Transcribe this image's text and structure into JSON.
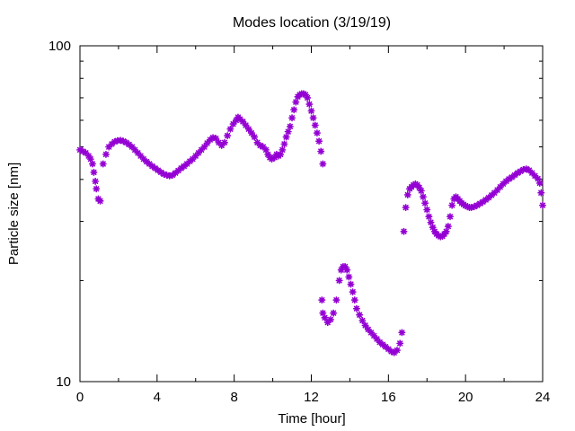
{
  "chart_data": {
    "type": "scatter",
    "title": "Modes location (3/19/19)",
    "xlabel": "Time [hour]",
    "ylabel": "Particle size [nm]",
    "xlim": [
      0,
      24
    ],
    "ylim": [
      10,
      100
    ],
    "yscale": "log",
    "grid": false,
    "marker_color": "#9400d3",
    "xticks": [
      {
        "value": 0,
        "label": "0"
      },
      {
        "value": 4,
        "label": "4"
      },
      {
        "value": 8,
        "label": "8"
      },
      {
        "value": 12,
        "label": "12"
      },
      {
        "value": 16,
        "label": "16"
      },
      {
        "value": 20,
        "label": "20"
      },
      {
        "value": 24,
        "label": "24"
      }
    ],
    "yticks": [
      {
        "value": 10,
        "label": "10"
      },
      {
        "value": 100,
        "label": "100"
      }
    ],
    "series": [
      {
        "points": [
          [
            0.0,
            49.0
          ],
          [
            0.15,
            48.5
          ],
          [
            0.3,
            48.0
          ],
          [
            0.45,
            47.0
          ],
          [
            0.55,
            46.0
          ],
          [
            0.65,
            44.5
          ],
          [
            0.72,
            42.0
          ],
          [
            0.8,
            39.5
          ],
          [
            0.85,
            37.5
          ],
          [
            0.95,
            35.0
          ],
          [
            1.05,
            34.5
          ],
          [
            1.2,
            44.5
          ],
          [
            1.35,
            47.5
          ],
          [
            1.5,
            50.0
          ],
          [
            1.65,
            51.0
          ],
          [
            1.8,
            51.8
          ],
          [
            1.95,
            52.2
          ],
          [
            2.1,
            52.3
          ],
          [
            2.25,
            52.0
          ],
          [
            2.4,
            51.5
          ],
          [
            2.55,
            50.8
          ],
          [
            2.7,
            50.0
          ],
          [
            2.85,
            49.0
          ],
          [
            3.0,
            48.0
          ],
          [
            3.15,
            47.0
          ],
          [
            3.3,
            46.0
          ],
          [
            3.45,
            45.2
          ],
          [
            3.6,
            44.5
          ],
          [
            3.75,
            43.8
          ],
          [
            3.9,
            43.2
          ],
          [
            4.05,
            42.6
          ],
          [
            4.2,
            42.0
          ],
          [
            4.35,
            41.5
          ],
          [
            4.5,
            41.2
          ],
          [
            4.65,
            41.0
          ],
          [
            4.8,
            41.2
          ],
          [
            4.95,
            41.8
          ],
          [
            5.1,
            42.5
          ],
          [
            5.25,
            43.2
          ],
          [
            5.4,
            43.8
          ],
          [
            5.55,
            44.5
          ],
          [
            5.7,
            45.3
          ],
          [
            5.85,
            46.0
          ],
          [
            6.0,
            47.0
          ],
          [
            6.15,
            48.0
          ],
          [
            6.3,
            49.0
          ],
          [
            6.45,
            50.0
          ],
          [
            6.6,
            51.3
          ],
          [
            6.75,
            52.5
          ],
          [
            6.9,
            53.3
          ],
          [
            7.05,
            53.0
          ],
          [
            7.2,
            51.5
          ],
          [
            7.35,
            50.5
          ],
          [
            7.5,
            51.5
          ],
          [
            7.65,
            54.0
          ],
          [
            7.8,
            56.5
          ],
          [
            7.95,
            58.5
          ],
          [
            8.1,
            60.0
          ],
          [
            8.2,
            61.3
          ],
          [
            8.3,
            60.5
          ],
          [
            8.45,
            59.5
          ],
          [
            8.6,
            58.0
          ],
          [
            8.75,
            56.5
          ],
          [
            8.9,
            55.0
          ],
          [
            9.05,
            53.5
          ],
          [
            9.2,
            51.5
          ],
          [
            9.35,
            50.5
          ],
          [
            9.5,
            50.0
          ],
          [
            9.65,
            49.0
          ],
          [
            9.75,
            47.5
          ],
          [
            9.85,
            46.5
          ],
          [
            9.95,
            46.0
          ],
          [
            10.1,
            46.5
          ],
          [
            10.2,
            47.5
          ],
          [
            10.3,
            47.0
          ],
          [
            10.4,
            47.5
          ],
          [
            10.5,
            49.0
          ],
          [
            10.6,
            51.0
          ],
          [
            10.7,
            53.5
          ],
          [
            10.8,
            55.5
          ],
          [
            10.9,
            57.5
          ],
          [
            11.0,
            61.0
          ],
          [
            11.1,
            64.5
          ],
          [
            11.2,
            68.0
          ],
          [
            11.3,
            70.5
          ],
          [
            11.4,
            71.5
          ],
          [
            11.5,
            72.0
          ],
          [
            11.6,
            72.0
          ],
          [
            11.7,
            71.5
          ],
          [
            11.8,
            70.0
          ],
          [
            11.9,
            67.0
          ],
          [
            12.0,
            64.0
          ],
          [
            12.1,
            61.0
          ],
          [
            12.2,
            58.0
          ],
          [
            12.3,
            55.0
          ],
          [
            12.4,
            52.0
          ],
          [
            12.5,
            48.5
          ],
          [
            12.6,
            44.5
          ],
          [
            12.55,
            17.5
          ],
          [
            12.6,
            16.0
          ],
          [
            12.7,
            15.5
          ],
          [
            12.85,
            15.0
          ],
          [
            13.0,
            15.3
          ],
          [
            13.15,
            16.0
          ],
          [
            13.3,
            17.5
          ],
          [
            13.45,
            20.0
          ],
          [
            13.55,
            21.5
          ],
          [
            13.65,
            22.0
          ],
          [
            13.75,
            22.0
          ],
          [
            13.85,
            21.5
          ],
          [
            13.95,
            20.5
          ],
          [
            14.05,
            19.5
          ],
          [
            14.15,
            18.5
          ],
          [
            14.25,
            17.5
          ],
          [
            14.35,
            16.5
          ],
          [
            14.5,
            15.8
          ],
          [
            14.65,
            15.2
          ],
          [
            14.8,
            14.7
          ],
          [
            14.95,
            14.3
          ],
          [
            15.1,
            14.0
          ],
          [
            15.25,
            13.7
          ],
          [
            15.4,
            13.4
          ],
          [
            15.55,
            13.1
          ],
          [
            15.7,
            12.9
          ],
          [
            15.85,
            12.7
          ],
          [
            16.0,
            12.5
          ],
          [
            16.15,
            12.3
          ],
          [
            16.3,
            12.2
          ],
          [
            16.45,
            12.4
          ],
          [
            16.6,
            13.0
          ],
          [
            16.7,
            14.0
          ],
          [
            16.8,
            28.0
          ],
          [
            16.9,
            33.0
          ],
          [
            17.0,
            36.0
          ],
          [
            17.1,
            37.5
          ],
          [
            17.2,
            38.0
          ],
          [
            17.3,
            38.5
          ],
          [
            17.4,
            38.8
          ],
          [
            17.5,
            38.5
          ],
          [
            17.6,
            37.8
          ],
          [
            17.7,
            37.0
          ],
          [
            17.8,
            35.5
          ],
          [
            17.9,
            34.0
          ],
          [
            18.0,
            32.5
          ],
          [
            18.1,
            31.0
          ],
          [
            18.2,
            29.8
          ],
          [
            18.3,
            28.8
          ],
          [
            18.4,
            28.0
          ],
          [
            18.5,
            27.5
          ],
          [
            18.6,
            27.2
          ],
          [
            18.7,
            27.0
          ],
          [
            18.8,
            27.1
          ],
          [
            18.9,
            27.5
          ],
          [
            19.0,
            28.0
          ],
          [
            19.1,
            29.0
          ],
          [
            19.2,
            31.0
          ],
          [
            19.3,
            33.5
          ],
          [
            19.4,
            35.0
          ],
          [
            19.5,
            35.5
          ],
          [
            19.6,
            35.0
          ],
          [
            19.7,
            34.5
          ],
          [
            19.8,
            34.0
          ],
          [
            19.9,
            33.7
          ],
          [
            20.0,
            33.4
          ],
          [
            20.1,
            33.2
          ],
          [
            20.2,
            33.0
          ],
          [
            20.3,
            33.0
          ],
          [
            20.45,
            33.2
          ],
          [
            20.6,
            33.5
          ],
          [
            20.75,
            33.9
          ],
          [
            20.9,
            34.3
          ],
          [
            21.05,
            34.8
          ],
          [
            21.2,
            35.3
          ],
          [
            21.35,
            35.9
          ],
          [
            21.5,
            36.5
          ],
          [
            21.65,
            37.2
          ],
          [
            21.8,
            38.0
          ],
          [
            21.95,
            38.8
          ],
          [
            22.1,
            39.5
          ],
          [
            22.25,
            40.1
          ],
          [
            22.4,
            40.6
          ],
          [
            22.55,
            41.2
          ],
          [
            22.7,
            41.8
          ],
          [
            22.85,
            42.3
          ],
          [
            23.0,
            42.8
          ],
          [
            23.15,
            43.0
          ],
          [
            23.3,
            42.6
          ],
          [
            23.45,
            41.8
          ],
          [
            23.6,
            41.0
          ],
          [
            23.75,
            40.2
          ],
          [
            23.85,
            39.0
          ],
          [
            23.92,
            36.5
          ],
          [
            24.0,
            33.5
          ]
        ]
      }
    ]
  }
}
